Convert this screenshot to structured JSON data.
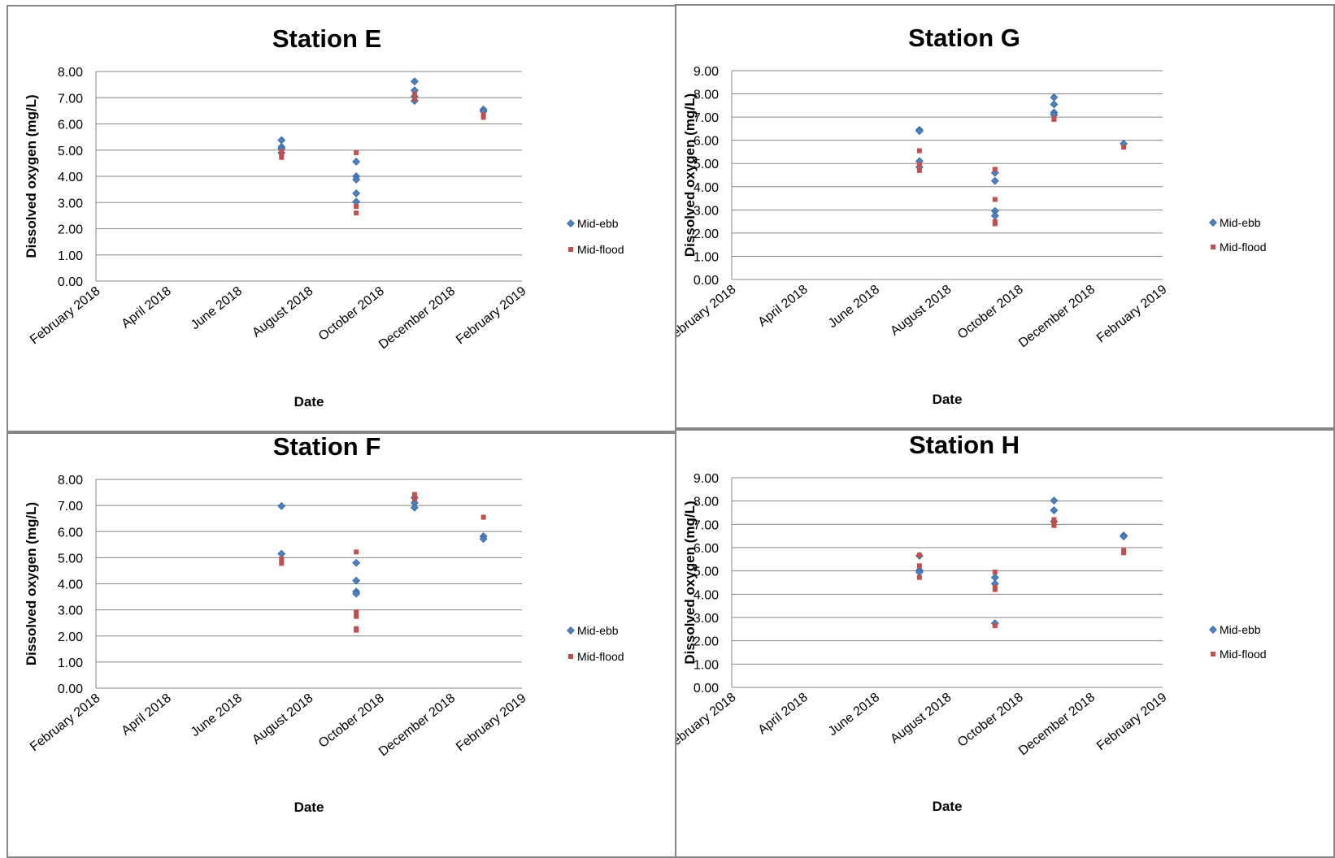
{
  "legend": {
    "entries": [
      "Mid-ebb",
      "Mid-flood"
    ],
    "ebb_color": "#4F81BD",
    "ebb_edge": "#3A6BA8",
    "flood_color": "#C0504D"
  },
  "x_axis": {
    "label": "Date",
    "ticks": [
      "February 2018",
      "April 2018",
      "June 2018",
      "August 2018",
      "October 2018",
      "December 2018",
      "February 2019"
    ]
  },
  "chart_data": [
    {
      "type": "scatter",
      "title": "Station E",
      "xlabel": "Date",
      "ylabel": "Dissolved oxygen (mg/L)",
      "xlim": [
        "2018-02-01",
        "2019-02-01"
      ],
      "ylim": [
        0,
        8
      ],
      "yticks": [
        "0.00",
        "1.00",
        "2.00",
        "3.00",
        "4.00",
        "5.00",
        "6.00",
        "7.00",
        "8.00"
      ],
      "grid": true,
      "legend_position": "right",
      "series": [
        {
          "name": "Mid-ebb",
          "x": [
            "2018-07-10",
            "2018-07-10",
            "2018-07-10",
            "2018-07-10",
            "2018-09-12",
            "2018-09-12",
            "2018-09-12",
            "2018-09-12",
            "2018-09-12",
            "2018-11-01",
            "2018-11-01",
            "2018-11-01",
            "2018-11-01",
            "2018-12-30",
            "2018-12-30"
          ],
          "y": [
            5.38,
            5.12,
            5.05,
            4.9,
            4.56,
            4.0,
            3.88,
            3.35,
            3.03,
            7.62,
            7.28,
            7.05,
            6.88,
            6.55,
            6.48
          ]
        },
        {
          "name": "Mid-flood",
          "x": [
            "2018-07-10",
            "2018-07-10",
            "2018-07-10",
            "2018-09-12",
            "2018-09-12",
            "2018-09-12",
            "2018-11-01",
            "2018-11-01",
            "2018-12-30",
            "2018-12-30"
          ],
          "y": [
            4.95,
            4.85,
            4.72,
            4.9,
            2.85,
            2.6,
            7.15,
            6.95,
            6.35,
            6.25
          ]
        }
      ]
    },
    {
      "type": "scatter",
      "title": "Station G",
      "xlabel": "Date",
      "ylabel": "Dissolved oxygen (mg/L)",
      "xlim": [
        "2018-02-01",
        "2019-02-01"
      ],
      "ylim": [
        0,
        9
      ],
      "yticks": [
        "0.00",
        "1.00",
        "2.00",
        "3.00",
        "4.00",
        "5.00",
        "6.00",
        "7.00",
        "8.00",
        "9.00"
      ],
      "grid": true,
      "legend_position": "right",
      "series": [
        {
          "name": "Mid-ebb",
          "x": [
            "2018-07-10",
            "2018-07-10",
            "2018-07-10",
            "2018-07-10",
            "2018-09-12",
            "2018-09-12",
            "2018-09-12",
            "2018-09-12",
            "2018-11-01",
            "2018-11-01",
            "2018-11-01",
            "2018-11-01",
            "2018-12-30"
          ],
          "y": [
            6.45,
            6.4,
            5.1,
            4.85,
            4.6,
            4.25,
            2.95,
            2.75,
            7.85,
            7.55,
            7.2,
            7.1,
            5.85
          ]
        },
        {
          "name": "Mid-flood",
          "x": [
            "2018-07-10",
            "2018-07-10",
            "2018-07-10",
            "2018-09-12",
            "2018-09-12",
            "2018-09-12",
            "2018-09-12",
            "2018-11-01",
            "2018-11-01",
            "2018-12-30"
          ],
          "y": [
            5.55,
            4.95,
            4.7,
            4.75,
            3.45,
            2.5,
            2.4,
            6.95,
            6.9,
            5.7
          ]
        }
      ]
    },
    {
      "type": "scatter",
      "title": "Station F",
      "xlabel": "Date",
      "ylabel": "Dissolved oxygen (mg/L)",
      "xlim": [
        "2018-02-01",
        "2019-02-01"
      ],
      "ylim": [
        0,
        8
      ],
      "yticks": [
        "0.00",
        "1.00",
        "2.00",
        "3.00",
        "4.00",
        "5.00",
        "6.00",
        "7.00",
        "8.00"
      ],
      "grid": true,
      "legend_position": "right",
      "series": [
        {
          "name": "Mid-ebb",
          "x": [
            "2018-07-10",
            "2018-07-10",
            "2018-09-12",
            "2018-09-12",
            "2018-09-12",
            "2018-09-12",
            "2018-11-01",
            "2018-11-01",
            "2018-11-01",
            "2018-12-30",
            "2018-12-30"
          ],
          "y": [
            6.98,
            5.15,
            4.8,
            4.12,
            3.7,
            3.62,
            7.3,
            7.1,
            6.92,
            5.82,
            5.72
          ]
        },
        {
          "name": "Mid-flood",
          "x": [
            "2018-07-10",
            "2018-07-10",
            "2018-09-12",
            "2018-09-12",
            "2018-09-12",
            "2018-09-12",
            "2018-09-12",
            "2018-11-01",
            "2018-11-01",
            "2018-12-30"
          ],
          "y": [
            4.95,
            4.78,
            5.22,
            2.92,
            2.75,
            2.28,
            2.22,
            7.42,
            7.25,
            6.55
          ]
        }
      ]
    },
    {
      "type": "scatter",
      "title": "Station H",
      "xlabel": "Date",
      "ylabel": "Dissolved oxygen (mg/L)",
      "xlim": [
        "2018-02-01",
        "2019-02-01"
      ],
      "ylim": [
        0,
        9
      ],
      "yticks": [
        "0.00",
        "1.00",
        "2.00",
        "3.00",
        "4.00",
        "5.00",
        "6.00",
        "7.00",
        "8.00",
        "9.00"
      ],
      "grid": true,
      "legend_position": "right",
      "series": [
        {
          "name": "Mid-ebb",
          "x": [
            "2018-07-10",
            "2018-07-10",
            "2018-07-10",
            "2018-09-12",
            "2018-09-12",
            "2018-09-12",
            "2018-11-01",
            "2018-11-01",
            "2018-11-01",
            "2018-12-30",
            "2018-12-30"
          ],
          "y": [
            5.65,
            5.02,
            4.95,
            4.72,
            4.45,
            2.75,
            8.02,
            7.6,
            7.12,
            6.52,
            6.48
          ]
        },
        {
          "name": "Mid-flood",
          "x": [
            "2018-07-10",
            "2018-07-10",
            "2018-07-10",
            "2018-09-12",
            "2018-09-12",
            "2018-09-12",
            "2018-09-12",
            "2018-11-01",
            "2018-11-01",
            "2018-11-01",
            "2018-12-30",
            "2018-12-30"
          ],
          "y": [
            5.68,
            5.22,
            4.72,
            4.95,
            4.3,
            4.2,
            2.65,
            7.2,
            7.0,
            6.95,
            5.88,
            5.78
          ]
        }
      ]
    }
  ]
}
